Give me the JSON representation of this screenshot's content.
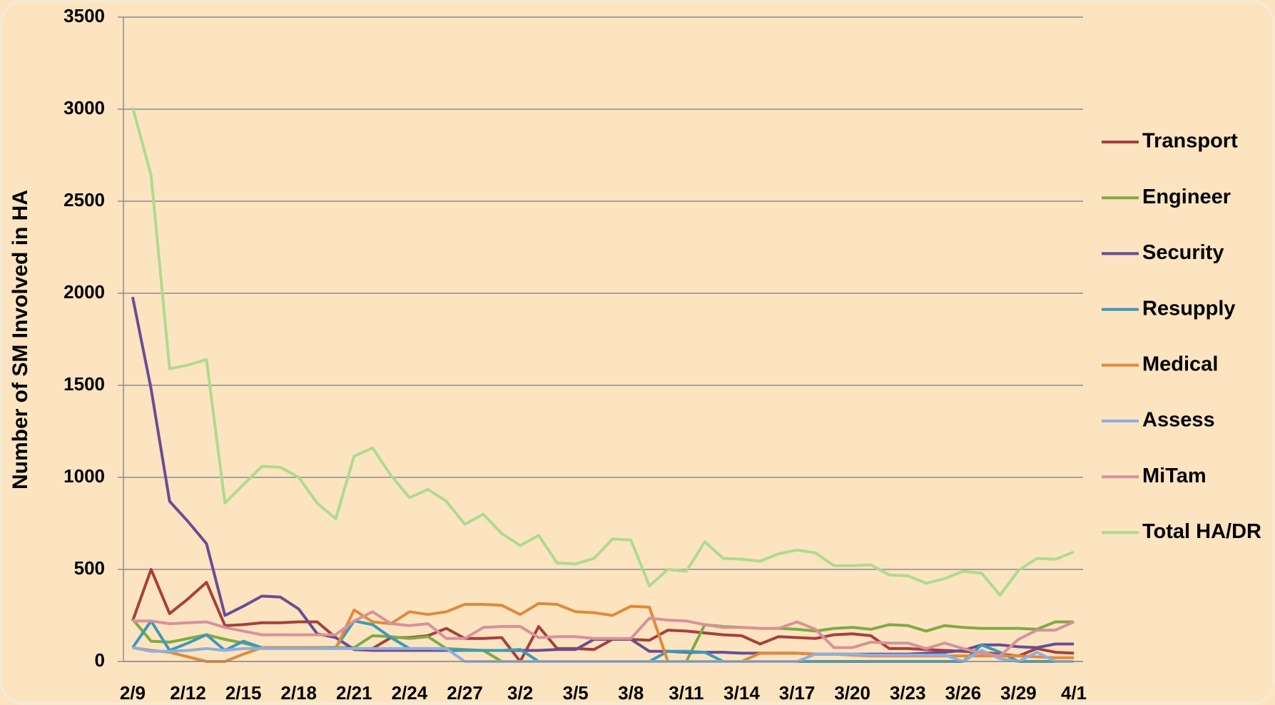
{
  "chart_data": {
    "type": "line",
    "y_label": "Number of SM Involved in HA",
    "categories": [
      "2/9",
      null,
      null,
      "2/12",
      null,
      null,
      "2/15",
      null,
      null,
      "2/18",
      null,
      null,
      "2/21",
      null,
      null,
      "2/24",
      null,
      null,
      "2/27",
      null,
      null,
      "3/2",
      null,
      null,
      "3/5",
      null,
      null,
      "3/8",
      null,
      null,
      "3/11",
      null,
      null,
      "3/14",
      null,
      null,
      "3/17",
      null,
      null,
      "3/20",
      null,
      null,
      "3/23",
      null,
      null,
      "3/26",
      null,
      null,
      "3/29",
      null,
      null,
      "4/1"
    ],
    "ylim": [
      0,
      3500
    ],
    "yticks": [
      0,
      500,
      1000,
      1500,
      2000,
      2500,
      3000,
      3500
    ],
    "grid": true,
    "legend": "right",
    "series": [
      {
        "name": "Transport",
        "color": "#a5403d",
        "values": [
          220,
          500,
          260,
          340,
          430,
          195,
          200,
          210,
          210,
          215,
          215,
          130,
          65,
          70,
          130,
          130,
          140,
          180,
          125,
          125,
          130,
          0,
          190,
          70,
          70,
          65,
          120,
          120,
          115,
          170,
          165,
          155,
          145,
          140,
          95,
          135,
          130,
          125,
          145,
          150,
          140,
          70,
          70,
          65,
          60,
          55,
          50,
          40,
          30,
          70,
          50,
          45
        ]
      },
      {
        "name": "Engineer",
        "color": "#7faa45",
        "values": [
          230,
          110,
          105,
          125,
          145,
          120,
          100,
          75,
          75,
          75,
          75,
          75,
          75,
          140,
          135,
          125,
          135,
          70,
          65,
          60,
          0,
          0,
          0,
          0,
          0,
          0,
          0,
          0,
          0,
          0,
          0,
          200,
          190,
          185,
          180,
          180,
          175,
          165,
          180,
          185,
          175,
          200,
          195,
          165,
          195,
          185,
          180,
          180,
          180,
          175,
          215,
          215
        ]
      },
      {
        "name": "Security",
        "color": "#6a4d94",
        "values": [
          1980,
          1480,
          870,
          760,
          640,
          250,
          300,
          355,
          350,
          285,
          150,
          130,
          65,
          60,
          60,
          60,
          60,
          60,
          60,
          60,
          60,
          60,
          60,
          65,
          65,
          120,
          120,
          120,
          55,
          55,
          50,
          50,
          50,
          45,
          45,
          45,
          45,
          40,
          40,
          40,
          40,
          40,
          40,
          45,
          50,
          60,
          90,
          90,
          80,
          75,
          95,
          95
        ]
      },
      {
        "name": "Resupply",
        "color": "#3b9ab8",
        "values": [
          75,
          220,
          60,
          100,
          145,
          60,
          110,
          75,
          75,
          75,
          75,
          75,
          220,
          200,
          130,
          70,
          70,
          65,
          60,
          60,
          60,
          65,
          0,
          0,
          0,
          0,
          0,
          0,
          0,
          55,
          55,
          50,
          0,
          0,
          0,
          0,
          0,
          0,
          0,
          0,
          0,
          0,
          0,
          0,
          0,
          0,
          90,
          50,
          0,
          0,
          0,
          0
        ]
      },
      {
        "name": "Medical",
        "color": "#e08a3a",
        "values": [
          75,
          60,
          50,
          25,
          0,
          0,
          40,
          75,
          75,
          75,
          75,
          70,
          280,
          215,
          205,
          270,
          255,
          270,
          310,
          310,
          305,
          255,
          315,
          310,
          270,
          265,
          250,
          300,
          295,
          0,
          0,
          0,
          0,
          0,
          45,
          45,
          45,
          40,
          40,
          35,
          30,
          30,
          30,
          30,
          30,
          30,
          30,
          30,
          30,
          25,
          20,
          20
        ]
      },
      {
        "name": "Assess",
        "color": "#8eb0df",
        "values": [
          75,
          55,
          55,
          60,
          70,
          60,
          70,
          70,
          70,
          70,
          70,
          70,
          70,
          70,
          70,
          70,
          70,
          70,
          0,
          0,
          0,
          0,
          0,
          0,
          0,
          0,
          0,
          0,
          0,
          0,
          0,
          0,
          0,
          0,
          0,
          0,
          0,
          40,
          40,
          40,
          35,
          35,
          35,
          35,
          35,
          0,
          60,
          15,
          0,
          50,
          0,
          0
        ]
      },
      {
        "name": "MiTam",
        "color": "#d8919a",
        "values": [
          220,
          220,
          205,
          210,
          215,
          185,
          165,
          145,
          145,
          145,
          145,
          145,
          220,
          270,
          205,
          195,
          205,
          125,
          125,
          185,
          190,
          190,
          130,
          135,
          135,
          125,
          125,
          125,
          235,
          225,
          220,
          200,
          185,
          185,
          180,
          180,
          215,
          175,
          75,
          75,
          105,
          100,
          100,
          70,
          100,
          70,
          45,
          30,
          120,
          170,
          170,
          215
        ]
      },
      {
        "name": "Total HA/DR",
        "color": "#addb8f",
        "values": [
          3010,
          2640,
          1590,
          1610,
          1640,
          860,
          960,
          1060,
          1055,
          1000,
          860,
          775,
          1115,
          1160,
          1010,
          890,
          935,
          870,
          745,
          800,
          695,
          630,
          685,
          535,
          530,
          560,
          665,
          660,
          410,
          500,
          490,
          650,
          560,
          555,
          545,
          585,
          605,
          590,
          520,
          520,
          525,
          470,
          465,
          425,
          450,
          490,
          480,
          360,
          495,
          560,
          555,
          595
        ]
      }
    ]
  }
}
